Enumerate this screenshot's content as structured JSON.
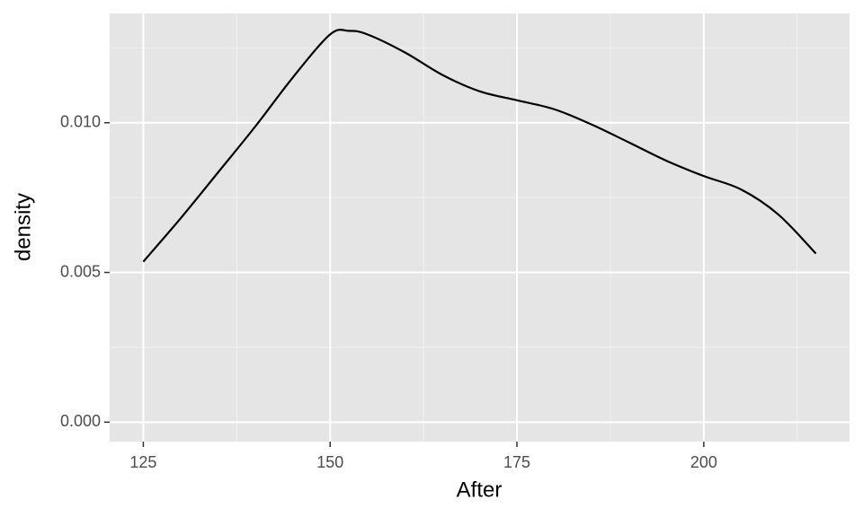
{
  "chart_data": {
    "type": "line",
    "x_label": "After",
    "y_label": "density",
    "x": [
      125,
      130,
      135,
      140,
      145,
      150,
      152.5,
      155,
      160,
      165,
      170,
      175,
      180,
      185,
      190,
      195,
      200,
      205,
      210,
      215
    ],
    "series": [
      {
        "color": "#000000",
        "values": [
          0.00536,
          0.00681,
          0.00834,
          0.00988,
          0.01151,
          0.01295,
          0.01307,
          0.01295,
          0.01235,
          0.0116,
          0.01105,
          0.01075,
          0.01045,
          0.00994,
          0.00934,
          0.00873,
          0.00822,
          0.00777,
          0.00693,
          0.00563
        ]
      }
    ],
    "xlim": [
      120.5,
      219.5
    ],
    "xticks": [
      125,
      150,
      175,
      200
    ],
    "ylim": [
      -0.00065,
      0.01365
    ],
    "yticks": [
      {
        "value": 0,
        "label": "0.000"
      },
      {
        "value": 0.005,
        "label": "0.005"
      },
      {
        "value": 0.01,
        "label": "0.010"
      }
    ],
    "x_minor_grid": [
      137.5,
      162.5,
      187.5,
      212.5
    ],
    "y_minor_grid": [
      0.0025,
      0.0075,
      0.0125
    ],
    "grid": true
  }
}
